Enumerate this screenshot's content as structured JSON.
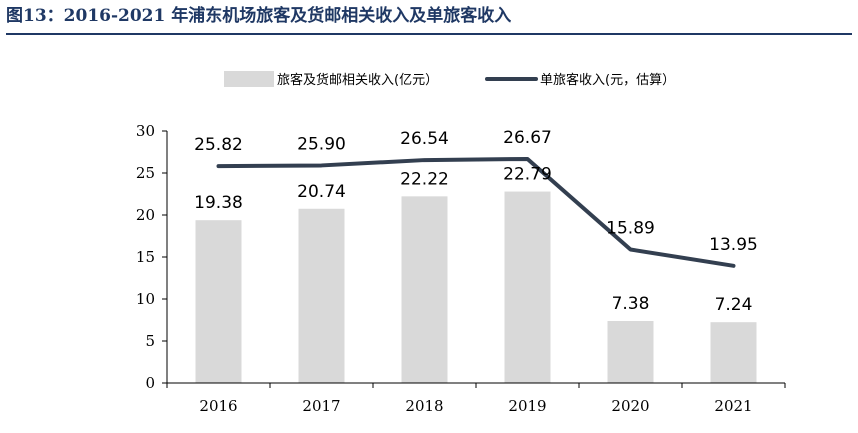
{
  "figure": {
    "title": "图13：2016-2021 年浦东机场旅客及货邮相关收入及单旅客收入"
  },
  "chart_data": {
    "type": "bar",
    "categories": [
      "2016",
      "2017",
      "2018",
      "2019",
      "2020",
      "2021"
    ],
    "series": [
      {
        "name": "旅客及货邮相关收入(亿元）",
        "type": "bar",
        "values": [
          19.38,
          20.74,
          22.22,
          22.79,
          7.38,
          7.24
        ],
        "labels": [
          "19.38",
          "20.74",
          "22.22",
          "22.79",
          "7.38",
          "7.24"
        ],
        "color": "#d9d9d9"
      },
      {
        "name": "单旅客收入(元，估算）",
        "type": "line",
        "values": [
          25.82,
          25.9,
          26.54,
          26.67,
          15.89,
          13.95
        ],
        "labels": [
          "25.82",
          "25.90",
          "26.54",
          "26.67",
          "15.89",
          "13.95"
        ],
        "color": "#333f50"
      }
    ],
    "ylim": [
      0,
      30
    ],
    "yticks": [
      "0",
      "5",
      "10",
      "15",
      "20",
      "25",
      "30"
    ],
    "legend_position": "top",
    "grid": false
  }
}
